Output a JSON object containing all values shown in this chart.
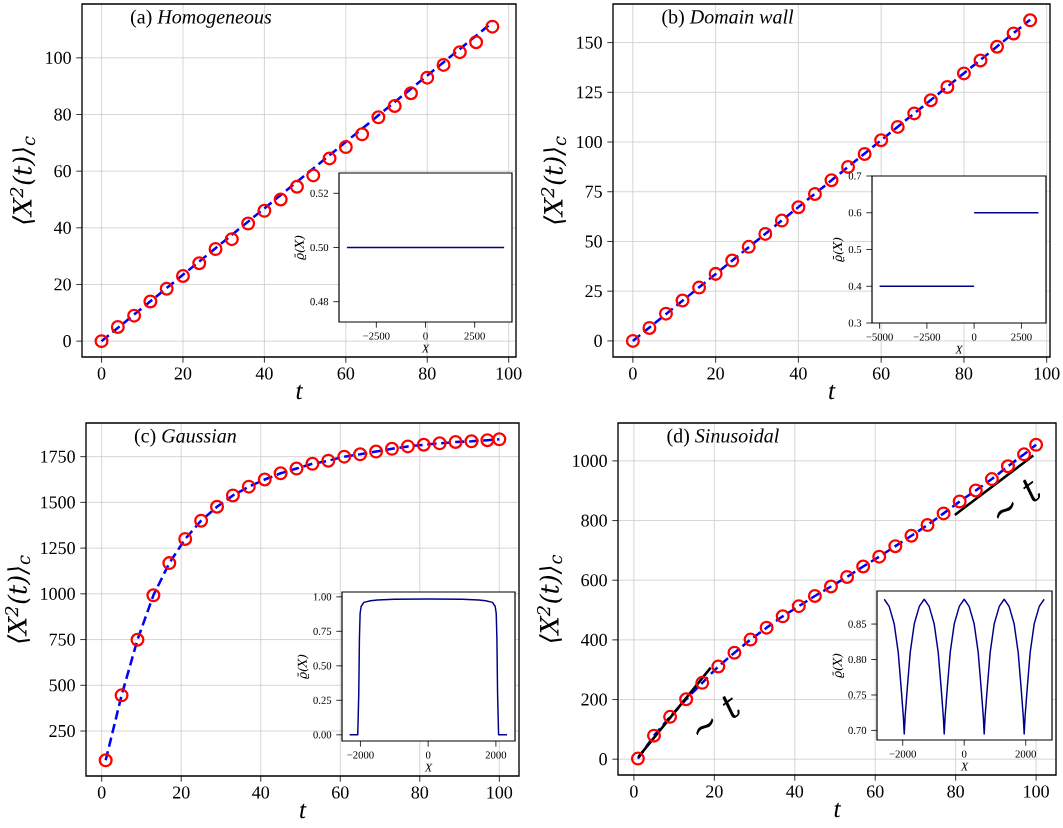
{
  "chart_data": [
    {
      "type": "scatter",
      "title": "(a) *Homogeneous*",
      "xlabel": "t",
      "ylabel": "⟨*X*$^{2}$(*t*)⟩$_{c}$",
      "xlim": [
        -4.8,
        101.8
      ],
      "ylim": [
        -5.6,
        119
      ],
      "xticks": [
        0,
        20,
        40,
        60,
        80,
        100
      ],
      "yticks": [
        0,
        20,
        40,
        60,
        80,
        100
      ],
      "grid": true,
      "x": [
        0,
        4,
        8,
        12,
        16,
        20,
        24,
        28,
        32,
        36,
        40,
        44,
        48,
        52,
        56,
        60,
        64,
        68,
        72,
        76,
        80,
        84,
        88,
        92,
        96
      ],
      "series": [
        {
          "type": "scatter",
          "color": "#ff0000",
          "marker": "circle",
          "values": [
            0,
            5,
            9,
            14,
            18.5,
            23,
            27.5,
            32.5,
            36,
            41.5,
            46,
            50,
            54.5,
            58.5,
            64.5,
            68.5,
            73,
            79,
            83,
            87.5,
            93,
            97.5,
            102,
            105.5,
            111
          ]
        },
        {
          "type": "line",
          "color": "#0000ff",
          "line_style": "dashed",
          "x": [
            0,
            96
          ],
          "values": [
            0,
            112.5
          ]
        }
      ]
    },
    {
      "type": "line",
      "xlabel": "X",
      "ylabel": "ϱ̄(X)",
      "xlim": [
        -4400,
        4400
      ],
      "ylim": [
        0.4725,
        0.5275
      ],
      "xticks": [
        {
          "value": -2500,
          "label": "−2500"
        },
        0,
        2500
      ],
      "yticks": [
        0.48,
        {
          "value": 0.5,
          "label": "0.50"
        },
        0.52
      ],
      "series": [
        {
          "color": "#00008b",
          "x": [
            -4000,
            4000
          ],
          "values": [
            0.5,
            0.5
          ]
        }
      ]
    },
    {
      "type": "scatter",
      "title": "(b) *Domain wall*",
      "xlabel": "t",
      "ylabel": "⟨*X*$^{2}$(*t*)⟩$_{c}$",
      "xlim": [
        -4.8,
        100.8
      ],
      "ylim": [
        -8.1,
        169.4
      ],
      "xticks": [
        0,
        20,
        40,
        60,
        80,
        100
      ],
      "yticks": [
        0,
        25,
        50,
        75,
        100,
        125,
        150
      ],
      "grid": true,
      "x": [
        0,
        4,
        8,
        12,
        16,
        20,
        24,
        28,
        32,
        36,
        40,
        44,
        48,
        52,
        56,
        60,
        64,
        68,
        72,
        76,
        80,
        84,
        88,
        92,
        96
      ],
      "series": [
        {
          "type": "scatter",
          "color": "#ff0000",
          "marker": "circle",
          "values": [
            0,
            6.5,
            13.7,
            20.3,
            26.8,
            33.7,
            40.4,
            47.3,
            53.8,
            60.5,
            67.2,
            73.9,
            80.8,
            87.5,
            94,
            100.9,
            107.6,
            114.4,
            121,
            127.7,
            134.5,
            141,
            147.9,
            154.6,
            161.2
          ]
        },
        {
          "type": "line",
          "color": "#0000ff",
          "line_style": "dashed",
          "x": [
            0,
            96
          ],
          "values": [
            0,
            161.5
          ]
        }
      ]
    },
    {
      "type": "line",
      "xlabel": "X",
      "ylabel": "ϱ̄(X)",
      "xlim": [
        -5400,
        3800
      ],
      "ylim": [
        0.3,
        0.7
      ],
      "xticks": [
        {
          "value": -5000,
          "label": "−5000"
        },
        {
          "value": -2500,
          "label": "−2500"
        },
        0,
        2500
      ],
      "yticks": [
        0.3,
        0.4,
        0.5,
        0.6,
        0.7
      ],
      "series": [
        {
          "color": "#00008b",
          "x": [
            -5000,
            0
          ],
          "values": [
            0.4,
            0.4
          ]
        },
        {
          "color": "#00008b",
          "x": [
            0,
            3400
          ],
          "values": [
            0.6,
            0.6
          ]
        }
      ]
    },
    {
      "type": "scatter",
      "title": "(c) *Gaussian*",
      "xlabel": "t",
      "ylabel": "⟨*X*$^{2}$(*t*)⟩$_{c}$",
      "xlim": [
        -3.95,
        104.95
      ],
      "ylim": [
        4,
        1934
      ],
      "xticks": [
        0,
        20,
        40,
        60,
        80,
        100
      ],
      "yticks": [
        250,
        500,
        750,
        1000,
        1250,
        1500,
        1750
      ],
      "grid": true,
      "x": [
        1,
        5,
        9,
        13,
        17,
        21,
        25,
        29,
        33,
        37,
        41,
        45,
        49,
        53,
        57,
        61,
        65,
        69,
        73,
        77,
        81,
        85,
        89,
        93,
        97,
        100
      ],
      "series": [
        {
          "type": "scatter",
          "color": "#ff0000",
          "marker": "circle",
          "values": [
            90,
            445,
            749,
            992,
            1168,
            1300,
            1400,
            1476,
            1538,
            1586,
            1625,
            1659,
            1685,
            1711,
            1728,
            1750,
            1763,
            1778,
            1793,
            1806,
            1815,
            1823,
            1830,
            1834,
            1840,
            1845
          ]
        },
        {
          "type": "line",
          "color": "#0000ff",
          "line_style": "dashed",
          "values": [
            90,
            445,
            749,
            992,
            1168,
            1300,
            1400,
            1476,
            1538,
            1586,
            1625,
            1659,
            1685,
            1711,
            1728,
            1750,
            1763,
            1778,
            1793,
            1806,
            1815,
            1823,
            1830,
            1834,
            1840,
            1845
          ]
        }
      ]
    },
    {
      "type": "line",
      "xlabel": "X",
      "ylabel": "ϱ̄(X)",
      "xlim": [
        -2545,
        2565
      ],
      "ylim": [
        -0.045,
        1.035
      ],
      "xticks": [
        {
          "value": -2000,
          "label": "−2000"
        },
        0,
        2000
      ],
      "yticks": [
        {
          "value": 0,
          "label": "0.00"
        },
        0.25,
        {
          "value": 0.5,
          "label": "0.50"
        },
        0.75,
        {
          "value": 1,
          "label": "1.00"
        }
      ],
      "series": [
        {
          "color": "#00008b",
          "x": [
            -2320,
            -2080,
            -2050,
            -2030,
            -2010,
            -1980,
            -1900,
            -1700,
            -1500,
            -1000,
            0,
            1000,
            1500,
            1700,
            1900,
            1980,
            2010,
            2030,
            2050,
            2080,
            2330
          ],
          "values": [
            0,
            0,
            0.3,
            0.7,
            0.88,
            0.93,
            0.96,
            0.972,
            0.977,
            0.982,
            0.984,
            0.982,
            0.977,
            0.972,
            0.96,
            0.93,
            0.88,
            0.7,
            0.3,
            0,
            0
          ]
        }
      ]
    },
    {
      "type": "scatter",
      "title": "(d) *Sinusoidal*",
      "xlabel": "t",
      "ylabel": "⟨*X*$^{2}$(*t*)⟩$_{c}$",
      "xlim": [
        -3.95,
        104.95
      ],
      "ylim": [
        -53,
        1127
      ],
      "xticks": [
        0,
        20,
        40,
        60,
        80,
        100
      ],
      "yticks": [
        0,
        200,
        400,
        600,
        800,
        1000
      ],
      "grid": true,
      "x": [
        1,
        5,
        9,
        13,
        17,
        21,
        25,
        29,
        33,
        37,
        41,
        45,
        49,
        53,
        57,
        61,
        65,
        69,
        73,
        77,
        81,
        85,
        89,
        93,
        97,
        100
      ],
      "annotations": [
        "∼ *t*",
        "∼ *t*"
      ],
      "series": [
        {
          "type": "scatter",
          "color": "#ff0000",
          "marker": "circle",
          "values": [
            2,
            79,
            142,
            201,
            256,
            311,
            357,
            401,
            441,
            479,
            513,
            547,
            579,
            611,
            646,
            679,
            714,
            749,
            785,
            824,
            864,
            901,
            939,
            982,
            1022,
            1054
          ]
        },
        {
          "type": "line",
          "color": "#0000ff",
          "line_style": "dashed",
          "values": [
            2,
            79,
            142,
            201,
            256,
            311,
            357,
            401,
            441,
            479,
            513,
            547,
            579,
            611,
            646,
            679,
            714,
            749,
            785,
            824,
            864,
            901,
            939,
            982,
            1022,
            1054
          ]
        },
        {
          "type": "line",
          "color": "#000000",
          "line_style": "solid",
          "x": [
            1.1,
            19.1
          ],
          "values": [
            7,
            307
          ]
        },
        {
          "type": "line",
          "color": "#000000",
          "line_style": "solid",
          "x": [
            79.8,
            99.3
          ],
          "values": [
            819,
            1018
          ]
        }
      ]
    },
    {
      "type": "line",
      "xlabel": "X",
      "ylabel": "ϱ̄(X)",
      "xlim": [
        -2835,
        2855
      ],
      "ylim": [
        0.6865,
        0.8966
      ],
      "xticks": [
        {
          "value": -2000,
          "label": "−2000"
        },
        0,
        2000
      ],
      "yticks": [
        {
          "value": 0.7,
          "label": "0.70"
        },
        0.75,
        {
          "value": 0.8,
          "label": "0.80"
        },
        0.85
      ],
      "series": [
        {
          "color": "#00008b",
          "x": [
            -2600,
            -2440,
            -2275,
            -2145,
            -2050,
            -1980,
            -1950,
            -1920,
            -1850,
            -1755,
            -1625,
            -1460,
            -1300,
            -1140,
            -975,
            -845,
            -750,
            -680,
            -650,
            -620,
            -550,
            -455,
            -325,
            -160,
            0,
            160,
            325,
            455,
            550,
            620,
            650,
            680,
            750,
            845,
            975,
            1140,
            1300,
            1460,
            1625,
            1755,
            1850,
            1920,
            1950,
            1980,
            2050,
            2145,
            2275,
            2440,
            2600
          ],
          "values": [
            0.885,
            0.875,
            0.85,
            0.81,
            0.76,
            0.72,
            0.695,
            0.72,
            0.76,
            0.81,
            0.85,
            0.875,
            0.885,
            0.875,
            0.85,
            0.81,
            0.76,
            0.72,
            0.695,
            0.72,
            0.76,
            0.81,
            0.85,
            0.875,
            0.885,
            0.875,
            0.85,
            0.81,
            0.76,
            0.72,
            0.695,
            0.72,
            0.76,
            0.81,
            0.85,
            0.875,
            0.885,
            0.875,
            0.85,
            0.81,
            0.76,
            0.72,
            0.695,
            0.72,
            0.76,
            0.81,
            0.85,
            0.875,
            0.885
          ]
        }
      ]
    }
  ]
}
